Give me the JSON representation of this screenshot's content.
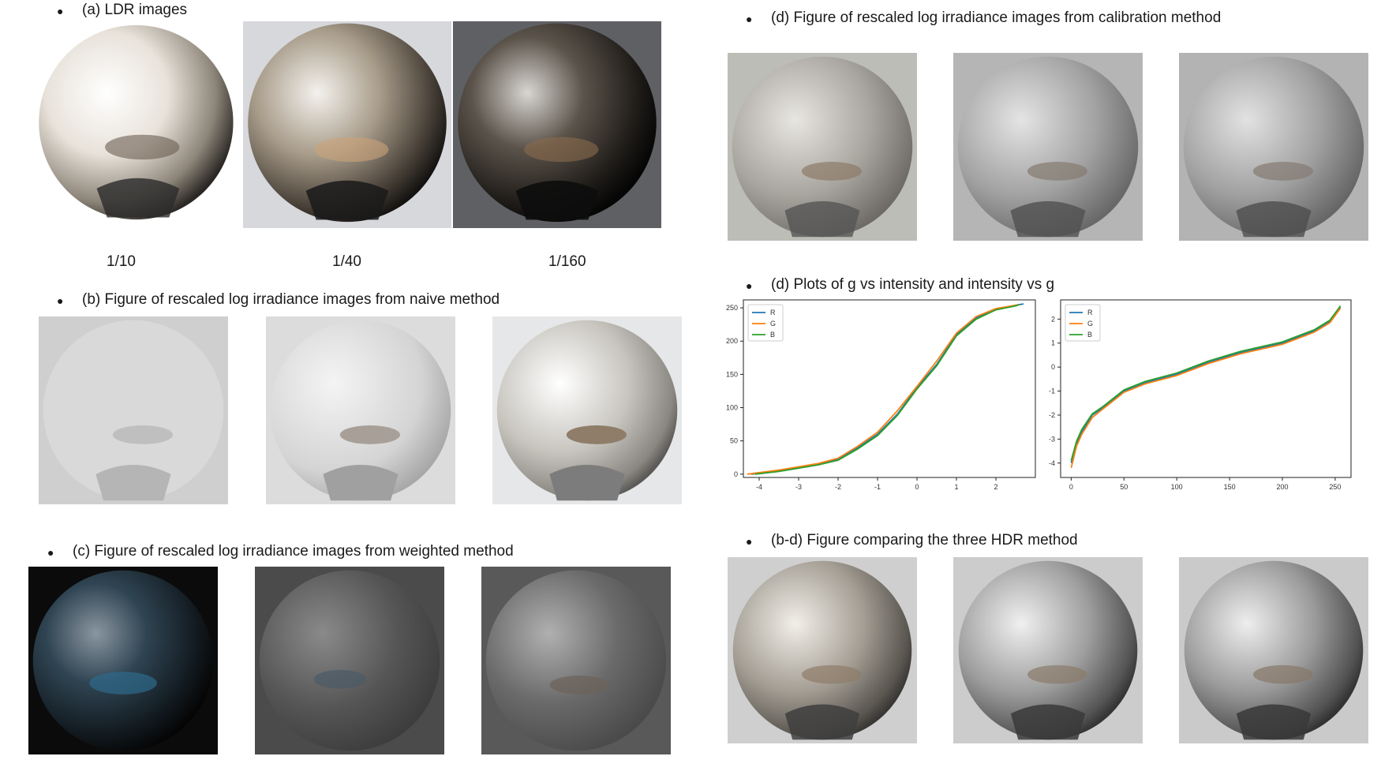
{
  "panels": {
    "a": {
      "heading": "(a) LDR images",
      "captions": [
        "1/10",
        "1/40",
        "1/160"
      ]
    },
    "b": {
      "heading": "(b) Figure of rescaled log irradiance images from naive method"
    },
    "c": {
      "heading": "(c) Figure of rescaled log irradiance images from weighted method"
    },
    "d_calib": {
      "heading": "(d) Figure of rescaled log irradiance images from calibration method"
    },
    "d_plots": {
      "heading": "(d) Plots of g vs intensity and intensity vs g"
    },
    "bd": {
      "heading": "(b-d) Figure comparing the three HDR method"
    }
  },
  "bullet_glyph": "●",
  "chart_data": [
    {
      "type": "line",
      "title": "",
      "xlabel": "",
      "ylabel": "",
      "xlim": [
        -4.4,
        3.0
      ],
      "ylim": [
        -5,
        262
      ],
      "xticks": [
        -4,
        -3,
        -2,
        -1,
        0,
        1,
        2
      ],
      "yticks": [
        0,
        50,
        100,
        150,
        200,
        250
      ],
      "legend": "top-left",
      "series": [
        {
          "name": "R",
          "color": "#1f77b4",
          "x": [
            -4.2,
            -3.5,
            -3.0,
            -2.5,
            -2.0,
            -1.5,
            -1.0,
            -0.5,
            0.0,
            0.5,
            1.0,
            1.5,
            2.0,
            2.5,
            2.7
          ],
          "y": [
            0,
            5,
            10,
            15,
            22,
            40,
            60,
            90,
            130,
            165,
            210,
            235,
            248,
            254,
            256
          ]
        },
        {
          "name": "G",
          "color": "#ff7f0e",
          "x": [
            -4.3,
            -3.5,
            -3.0,
            -2.5,
            -2.0,
            -1.5,
            -1.0,
            -0.5,
            0.0,
            0.5,
            1.0,
            1.5,
            2.0,
            2.5,
            2.6
          ],
          "y": [
            0,
            6,
            11,
            16,
            24,
            42,
            63,
            95,
            132,
            170,
            212,
            237,
            249,
            254,
            255
          ]
        },
        {
          "name": "B",
          "color": "#2ca02c",
          "x": [
            -4.1,
            -3.5,
            -3.0,
            -2.5,
            -2.0,
            -1.5,
            -1.0,
            -0.5,
            0.0,
            0.5,
            1.0,
            1.5,
            2.0,
            2.5,
            2.6
          ],
          "y": [
            0,
            4,
            9,
            14,
            21,
            38,
            58,
            88,
            128,
            163,
            208,
            233,
            247,
            253,
            255
          ]
        }
      ]
    },
    {
      "type": "line",
      "title": "",
      "xlabel": "",
      "ylabel": "",
      "xlim": [
        -10,
        265
      ],
      "ylim": [
        -4.6,
        2.8
      ],
      "xticks": [
        0,
        50,
        100,
        150,
        200,
        250
      ],
      "yticks": [
        -4,
        -3,
        -2,
        -1,
        0,
        1,
        2
      ],
      "legend": "top-left",
      "series": [
        {
          "name": "R",
          "color": "#1f77b4",
          "x": [
            0,
            5,
            10,
            20,
            30,
            50,
            70,
            100,
            130,
            160,
            200,
            230,
            245,
            255
          ],
          "y": [
            -4.0,
            -3.2,
            -2.7,
            -2.0,
            -1.7,
            -1.0,
            -0.65,
            -0.3,
            0.2,
            0.6,
            1.0,
            1.5,
            1.9,
            2.5
          ]
        },
        {
          "name": "G",
          "color": "#ff7f0e",
          "x": [
            0,
            5,
            10,
            20,
            30,
            50,
            70,
            100,
            130,
            160,
            200,
            230,
            245,
            255
          ],
          "y": [
            -4.2,
            -3.3,
            -2.8,
            -2.1,
            -1.75,
            -1.05,
            -0.7,
            -0.35,
            0.15,
            0.55,
            0.95,
            1.45,
            1.85,
            2.45
          ]
        },
        {
          "name": "B",
          "color": "#2ca02c",
          "x": [
            0,
            5,
            10,
            20,
            30,
            50,
            70,
            100,
            130,
            160,
            200,
            230,
            245,
            255
          ],
          "y": [
            -3.9,
            -3.1,
            -2.6,
            -1.95,
            -1.65,
            -0.95,
            -0.6,
            -0.25,
            0.25,
            0.65,
            1.05,
            1.55,
            1.95,
            2.55
          ]
        }
      ]
    }
  ]
}
